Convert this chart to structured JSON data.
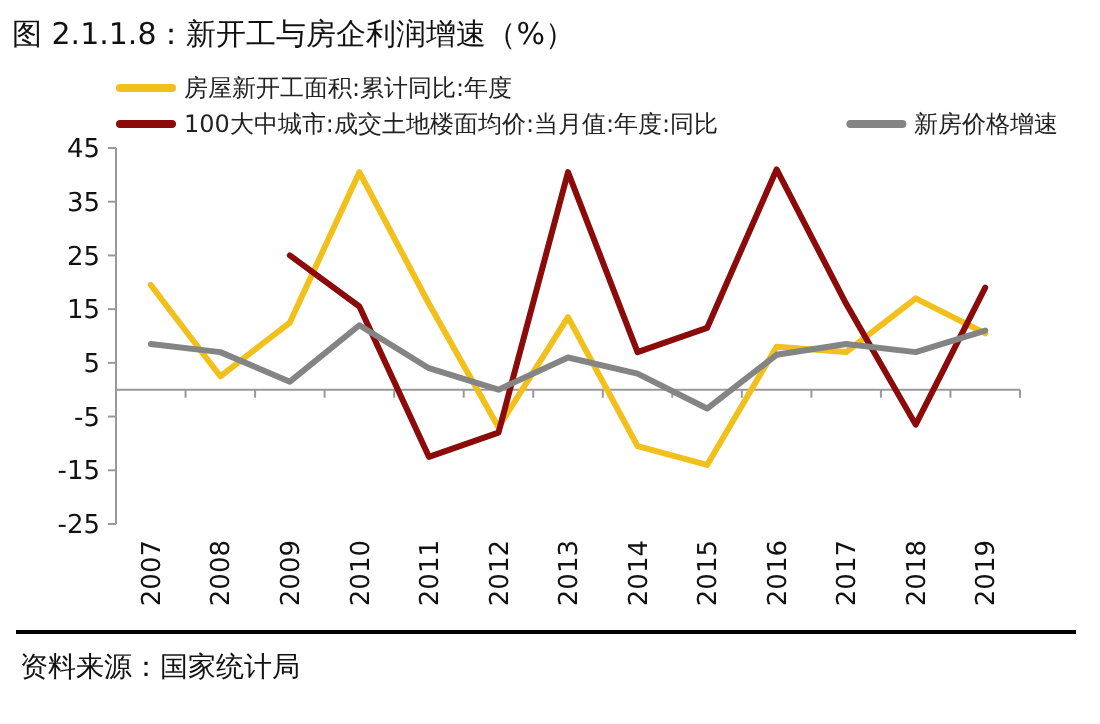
{
  "chart_data": {
    "type": "line",
    "title": "图 2.1.1.8：新开工与房企利润增速（%）",
    "categories": [
      "2007",
      "2008",
      "2009",
      "2010",
      "2011",
      "2012",
      "2013",
      "2014",
      "2015",
      "2016",
      "2017",
      "2018",
      "2019"
    ],
    "series": [
      {
        "name": "房屋新开工面积:累计同比:年度",
        "color": "#f2c01c",
        "values": [
          19.5,
          2.5,
          12.5,
          40.5,
          16,
          -7,
          13.5,
          -10.5,
          -14,
          8,
          7,
          17,
          10.5
        ]
      },
      {
        "name": "100大中城市:成交土地楼面均价:当月值:年度:同比",
        "color": "#8b0a0a",
        "values": [
          null,
          null,
          25,
          15.5,
          -12.5,
          -8,
          40.5,
          7,
          11.5,
          41,
          16,
          -6.5,
          19
        ]
      },
      {
        "name": "新房价格增速",
        "color": "#848484",
        "values": [
          8.5,
          7,
          1.5,
          12,
          4,
          0,
          6,
          3,
          -3.5,
          6.5,
          8.5,
          7,
          11
        ]
      }
    ],
    "ylim": [
      -25,
      45
    ],
    "yticks": [
      -25,
      -15,
      -5,
      5,
      15,
      25,
      35,
      45
    ],
    "grid": false,
    "legend": "top left",
    "marker": "none",
    "line_style": "solid",
    "annotations": [
      "资料来源：国家统计局"
    ]
  }
}
